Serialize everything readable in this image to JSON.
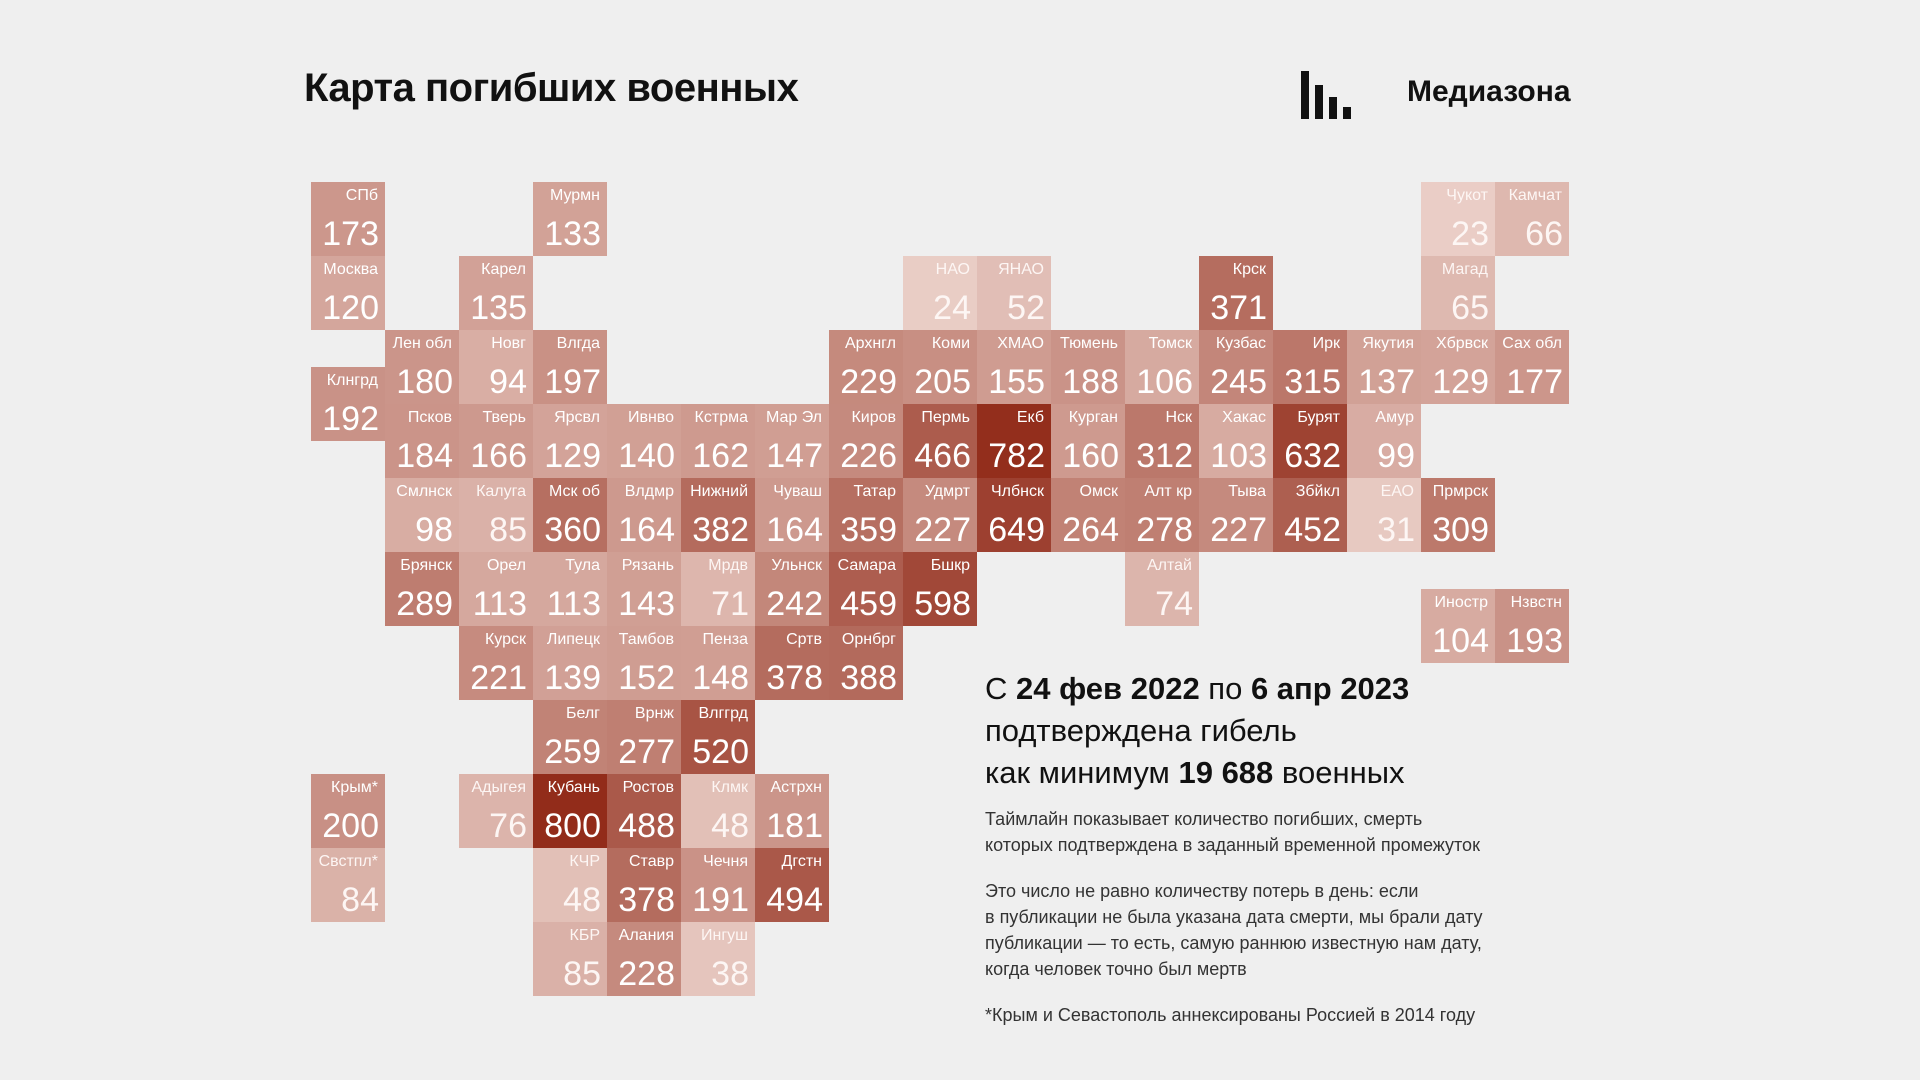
{
  "title": "Карта погибших военных",
  "brand": "Медиазона",
  "summary": {
    "prefix": "С ",
    "date_from": "24 фев 2022",
    "middle": " по ",
    "date_to": "6 апр 2023",
    "line2": "подтверждена гибель",
    "line3_prefix": "как минимум ",
    "total": "19 688",
    "line3_suffix": " военных"
  },
  "note1": [
    "Таймлайн показывает количество погибших, смерть",
    "которых подтверждена в заданный временной промежуток"
  ],
  "note2": [
    "Это число не равно количеству потерь в день: если",
    "в публикации не была указана дата смерти, мы брали дату",
    "публикации — то есть, самую раннюю известную нам дату,",
    "когда человек точно был мертв"
  ],
  "footnote": "*Крым и Севастополь аннексированы Россией в 2014 году",
  "regions": [
    {
      "a": "СПб",
      "v": 173,
      "c": 0,
      "r": 0
    },
    {
      "a": "Мурмн",
      "v": 133,
      "c": 3,
      "r": 0
    },
    {
      "a": "Чукот",
      "v": 23,
      "c": 15,
      "r": 0
    },
    {
      "a": "Камчат",
      "v": 66,
      "c": 16,
      "r": 0
    },
    {
      "a": "Москва",
      "v": 120,
      "c": 0,
      "r": 1
    },
    {
      "a": "Карел",
      "v": 135,
      "c": 2,
      "r": 1
    },
    {
      "a": "НАО",
      "v": 24,
      "c": 8,
      "r": 1
    },
    {
      "a": "ЯНАО",
      "v": 52,
      "c": 9,
      "r": 1
    },
    {
      "a": "Крск",
      "v": 371,
      "c": 12,
      "r": 1
    },
    {
      "a": "Магад",
      "v": 65,
      "c": 15,
      "r": 1
    },
    {
      "a": "Лен обл",
      "v": 180,
      "c": 1,
      "r": 2
    },
    {
      "a": "Новг",
      "v": 94,
      "c": 2,
      "r": 2
    },
    {
      "a": "Влгда",
      "v": 197,
      "c": 3,
      "r": 2
    },
    {
      "a": "Архнгл",
      "v": 229,
      "c": 7,
      "r": 2
    },
    {
      "a": "Коми",
      "v": 205,
      "c": 8,
      "r": 2
    },
    {
      "a": "ХМАО",
      "v": 155,
      "c": 9,
      "r": 2
    },
    {
      "a": "Тюмень",
      "v": 188,
      "c": 10,
      "r": 2
    },
    {
      "a": "Томск",
      "v": 106,
      "c": 11,
      "r": 2
    },
    {
      "a": "Кузбас",
      "v": 245,
      "c": 12,
      "r": 2
    },
    {
      "a": "Ирк",
      "v": 315,
      "c": 13,
      "r": 2
    },
    {
      "a": "Якутия",
      "v": 137,
      "c": 14,
      "r": 2
    },
    {
      "a": "Хбрвск",
      "v": 129,
      "c": 15,
      "r": 2
    },
    {
      "a": "Сах обл",
      "v": 177,
      "c": 16,
      "r": 2
    },
    {
      "a": "Клнгрд",
      "v": 192,
      "c": 0,
      "r": 2.5
    },
    {
      "a": "Псков",
      "v": 184,
      "c": 1,
      "r": 3
    },
    {
      "a": "Тверь",
      "v": 166,
      "c": 2,
      "r": 3
    },
    {
      "a": "Ярсвл",
      "v": 129,
      "c": 3,
      "r": 3
    },
    {
      "a": "Ивнво",
      "v": 140,
      "c": 4,
      "r": 3
    },
    {
      "a": "Кстрма",
      "v": 162,
      "c": 5,
      "r": 3
    },
    {
      "a": "Мар Эл",
      "v": 147,
      "c": 6,
      "r": 3
    },
    {
      "a": "Киров",
      "v": 226,
      "c": 7,
      "r": 3
    },
    {
      "a": "Пермь",
      "v": 466,
      "c": 8,
      "r": 3
    },
    {
      "a": "Екб",
      "v": 782,
      "c": 9,
      "r": 3
    },
    {
      "a": "Курган",
      "v": 160,
      "c": 10,
      "r": 3
    },
    {
      "a": "Нск",
      "v": 312,
      "c": 11,
      "r": 3
    },
    {
      "a": "Хакас",
      "v": 103,
      "c": 12,
      "r": 3
    },
    {
      "a": "Бурят",
      "v": 632,
      "c": 13,
      "r": 3
    },
    {
      "a": "Амур",
      "v": 99,
      "c": 14,
      "r": 3
    },
    {
      "a": "Смлнск",
      "v": 98,
      "c": 1,
      "r": 4
    },
    {
      "a": "Калуга",
      "v": 85,
      "c": 2,
      "r": 4
    },
    {
      "a": "Мск об",
      "v": 360,
      "c": 3,
      "r": 4
    },
    {
      "a": "Влдмр",
      "v": 164,
      "c": 4,
      "r": 4
    },
    {
      "a": "Нижний",
      "v": 382,
      "c": 5,
      "r": 4
    },
    {
      "a": "Чуваш",
      "v": 164,
      "c": 6,
      "r": 4
    },
    {
      "a": "Татар",
      "v": 359,
      "c": 7,
      "r": 4
    },
    {
      "a": "Удмрт",
      "v": 227,
      "c": 8,
      "r": 4
    },
    {
      "a": "Члбнск",
      "v": 649,
      "c": 9,
      "r": 4
    },
    {
      "a": "Омск",
      "v": 264,
      "c": 10,
      "r": 4
    },
    {
      "a": "Алт кр",
      "v": 278,
      "c": 11,
      "r": 4
    },
    {
      "a": "Тыва",
      "v": 227,
      "c": 12,
      "r": 4
    },
    {
      "a": "Збйкл",
      "v": 452,
      "c": 13,
      "r": 4
    },
    {
      "a": "ЕАО",
      "v": 31,
      "c": 14,
      "r": 4
    },
    {
      "a": "Прмрск",
      "v": 309,
      "c": 15,
      "r": 4
    },
    {
      "a": "Брянск",
      "v": 289,
      "c": 1,
      "r": 5
    },
    {
      "a": "Орел",
      "v": 113,
      "c": 2,
      "r": 5
    },
    {
      "a": "Тула",
      "v": 113,
      "c": 3,
      "r": 5
    },
    {
      "a": "Рязань",
      "v": 143,
      "c": 4,
      "r": 5
    },
    {
      "a": "Мрдв",
      "v": 71,
      "c": 5,
      "r": 5
    },
    {
      "a": "Ульнск",
      "v": 242,
      "c": 6,
      "r": 5
    },
    {
      "a": "Самара",
      "v": 459,
      "c": 7,
      "r": 5
    },
    {
      "a": "Бшкр",
      "v": 598,
      "c": 8,
      "r": 5
    },
    {
      "a": "Алтай",
      "v": 74,
      "c": 11,
      "r": 5
    },
    {
      "a": "Иностр",
      "v": 104,
      "c": 15,
      "r": 5.5
    },
    {
      "a": "Нзвстн",
      "v": 193,
      "c": 16,
      "r": 5.5
    },
    {
      "a": "Курск",
      "v": 221,
      "c": 2,
      "r": 6
    },
    {
      "a": "Липецк",
      "v": 139,
      "c": 3,
      "r": 6
    },
    {
      "a": "Тамбов",
      "v": 152,
      "c": 4,
      "r": 6
    },
    {
      "a": "Пенза",
      "v": 148,
      "c": 5,
      "r": 6
    },
    {
      "a": "Сртв",
      "v": 378,
      "c": 6,
      "r": 6
    },
    {
      "a": "Орнбрг",
      "v": 388,
      "c": 7,
      "r": 6
    },
    {
      "a": "Белг",
      "v": 259,
      "c": 3,
      "r": 7
    },
    {
      "a": "Врнж",
      "v": 277,
      "c": 4,
      "r": 7
    },
    {
      "a": "Влггрд",
      "v": 520,
      "c": 5,
      "r": 7
    },
    {
      "a": "Крым*",
      "v": 200,
      "c": 0,
      "r": 8
    },
    {
      "a": "Адыгея",
      "v": 76,
      "c": 2,
      "r": 8
    },
    {
      "a": "Кубань",
      "v": 800,
      "c": 3,
      "r": 8
    },
    {
      "a": "Ростов",
      "v": 488,
      "c": 4,
      "r": 8
    },
    {
      "a": "Клмк",
      "v": 48,
      "c": 5,
      "r": 8
    },
    {
      "a": "Астрхн",
      "v": 181,
      "c": 6,
      "r": 8
    },
    {
      "a": "Свстпл*",
      "v": 84,
      "c": 0,
      "r": 9
    },
    {
      "a": "КЧР",
      "v": 48,
      "c": 3,
      "r": 9
    },
    {
      "a": "Ставр",
      "v": 378,
      "c": 4,
      "r": 9
    },
    {
      "a": "Чечня",
      "v": 191,
      "c": 5,
      "r": 9
    },
    {
      "a": "Дгстн",
      "v": 494,
      "c": 6,
      "r": 9
    },
    {
      "a": "КБР",
      "v": 85,
      "c": 3,
      "r": 10
    },
    {
      "a": "Алания",
      "v": 228,
      "c": 4,
      "r": 10
    },
    {
      "a": "Ингуш",
      "v": 38,
      "c": 5,
      "r": 10
    }
  ]
}
